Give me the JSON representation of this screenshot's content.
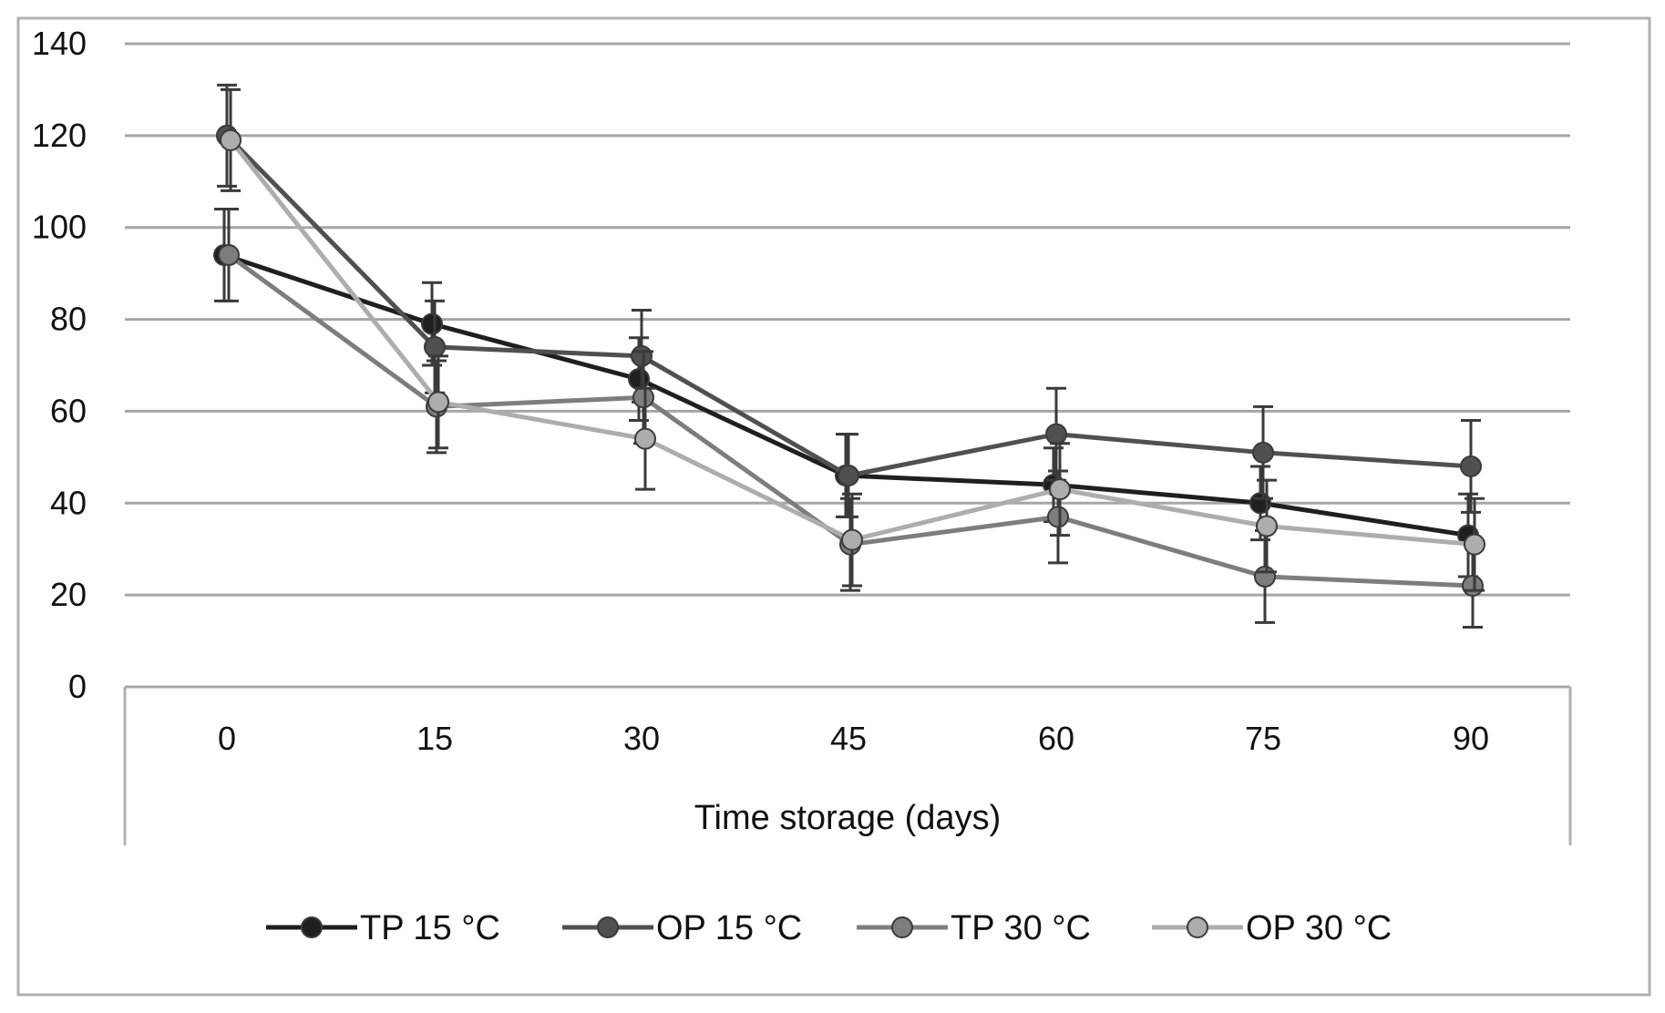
{
  "chart_data": {
    "type": "line",
    "title": "",
    "xlabel": "Time storage (days)",
    "ylabel": "",
    "x": [
      0,
      15,
      30,
      45,
      60,
      75,
      90
    ],
    "x_tick_labels": [
      "0",
      "15",
      "30",
      "45",
      "60",
      "75",
      "90"
    ],
    "y_tick_labels": [
      "0",
      "20",
      "40",
      "60",
      "80",
      "100",
      "120",
      "140"
    ],
    "ylim": [
      0,
      140
    ],
    "grid": true,
    "legend_position": "bottom",
    "series": [
      {
        "name": "TP 15 °C",
        "color": "#1f1f1f",
        "values": [
          94,
          79,
          67,
          46,
          44,
          40,
          33
        ],
        "errors": [
          10,
          9,
          9,
          9,
          8,
          8,
          9
        ]
      },
      {
        "name": "OP 15 °C",
        "color": "#505050",
        "values": [
          120,
          74,
          72,
          46,
          55,
          51,
          48
        ],
        "errors": [
          11,
          10,
          10,
          9,
          10,
          10,
          10
        ]
      },
      {
        "name": "TP 30 °C",
        "color": "#7d7d7d",
        "values": [
          94,
          61,
          63,
          31,
          37,
          24,
          22
        ],
        "errors": [
          10,
          10,
          10,
          10,
          10,
          10,
          9
        ]
      },
      {
        "name": "OP 30 °C",
        "color": "#adadad",
        "values": [
          119,
          62,
          54,
          32,
          43,
          35,
          31
        ],
        "errors": [
          11,
          10,
          11,
          10,
          10,
          10,
          10
        ]
      }
    ]
  }
}
